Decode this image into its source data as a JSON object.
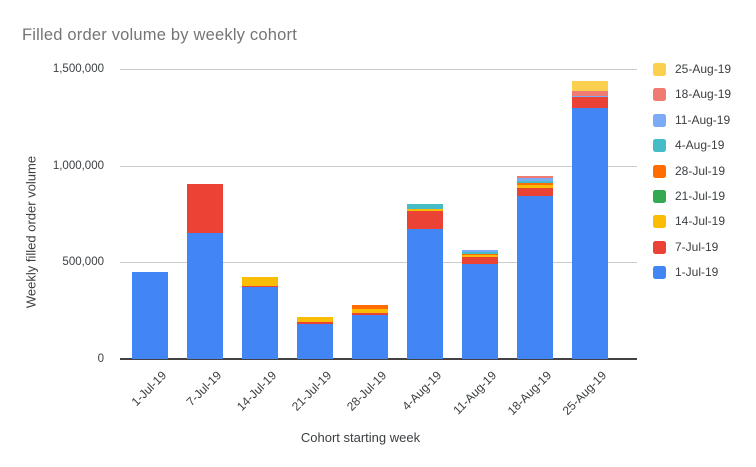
{
  "chart_data": {
    "type": "bar",
    "stacked": true,
    "title": "Filled order volume by weekly cohort",
    "xlabel": "Cohort starting week",
    "ylabel": "Weekly filled order volume",
    "categories": [
      "1-Jul-19",
      "7-Jul-19",
      "14-Jul-19",
      "21-Jul-19",
      "28-Jul-19",
      "4-Aug-19",
      "11-Aug-19",
      "18-Aug-19",
      "25-Aug-19"
    ],
    "series": [
      {
        "name": "1-Jul-19",
        "color": "#4285F4",
        "values": [
          450000,
          650000,
          370000,
          180000,
          230000,
          675000,
          490000,
          845000,
          1300000
        ]
      },
      {
        "name": "7-Jul-19",
        "color": "#EA4335",
        "values": [
          0,
          255000,
          10000,
          10000,
          8000,
          90000,
          40000,
          42000,
          57000
        ]
      },
      {
        "name": "14-Jul-19",
        "color": "#FBBC04",
        "values": [
          0,
          0,
          45000,
          25000,
          20000,
          10000,
          10000,
          15000,
          0
        ]
      },
      {
        "name": "21-Jul-19",
        "color": "#34A853",
        "values": [
          0,
          0,
          0,
          0,
          0,
          0,
          0,
          0,
          0
        ]
      },
      {
        "name": "28-Jul-19",
        "color": "#FF6D01",
        "values": [
          0,
          0,
          0,
          0,
          20000,
          0,
          5000,
          10000,
          0
        ]
      },
      {
        "name": "4-Aug-19",
        "color": "#46BDC6",
        "values": [
          0,
          0,
          0,
          0,
          0,
          25000,
          8000,
          10000,
          0
        ]
      },
      {
        "name": "11-Aug-19",
        "color": "#7BAAF7",
        "values": [
          0,
          0,
          0,
          0,
          0,
          0,
          12000,
          15000,
          5000
        ]
      },
      {
        "name": "18-Aug-19",
        "color": "#F07B72",
        "values": [
          0,
          0,
          0,
          0,
          0,
          0,
          0,
          12000,
          26000
        ]
      },
      {
        "name": "25-Aug-19",
        "color": "#FCD04F",
        "values": [
          0,
          0,
          0,
          0,
          0,
          0,
          0,
          0,
          52000
        ]
      }
    ],
    "yticks": [
      {
        "label": "0",
        "value": 0
      },
      {
        "label": "500,000",
        "value": 500000
      },
      {
        "label": "1,000,000",
        "value": 1000000
      },
      {
        "label": "1,500,000",
        "value": 1500000
      }
    ],
    "ylim": [
      0,
      1500000
    ],
    "grid": true,
    "legend_position": "right",
    "legend_order": [
      "25-Aug-19",
      "18-Aug-19",
      "11-Aug-19",
      "4-Aug-19",
      "28-Jul-19",
      "21-Jul-19",
      "14-Jul-19",
      "7-Jul-19",
      "1-Jul-19"
    ]
  },
  "colors": {
    "background": "#ffffff",
    "title_text": "#757575",
    "axis_text": "#3c4043",
    "gridline": "#cccccc",
    "baseline": "#424242"
  }
}
